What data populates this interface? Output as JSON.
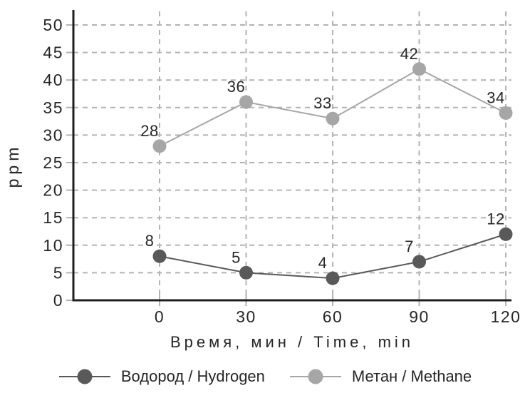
{
  "chart_data": {
    "type": "line",
    "title": "",
    "xlabel": "Время, мин / Time, min",
    "ylabel": "ppm",
    "x": [
      0,
      30,
      60,
      90,
      120
    ],
    "x_tick_labels": [
      "0",
      "30",
      "60",
      "90",
      "120"
    ],
    "ylim": [
      0,
      50
    ],
    "ytick_step": 5,
    "y_tick_labels": [
      "0",
      "5",
      "10",
      "15",
      "20",
      "25",
      "30",
      "35",
      "40",
      "45",
      "50"
    ],
    "grid": "dashed",
    "legend_position": "bottom",
    "series": [
      {
        "slug": "hydrogen",
        "name": "Водород / Hydrogen",
        "values": [
          8,
          5,
          4,
          7,
          12
        ],
        "point_labels": [
          "8",
          "5",
          "4",
          "7",
          "12"
        ],
        "color": "#595959"
      },
      {
        "slug": "methane",
        "name": "Метан / Methane",
        "values": [
          28,
          36,
          33,
          42,
          34
        ],
        "point_labels": [
          "28",
          "36",
          "33",
          "42",
          "34"
        ],
        "color": "#a6a6a6"
      }
    ]
  },
  "colors": {
    "axis": "#1f1f1f",
    "grid": "#b3b3b3",
    "tick": "#b3b3b3",
    "text": "#262626",
    "background": "#ffffff"
  }
}
